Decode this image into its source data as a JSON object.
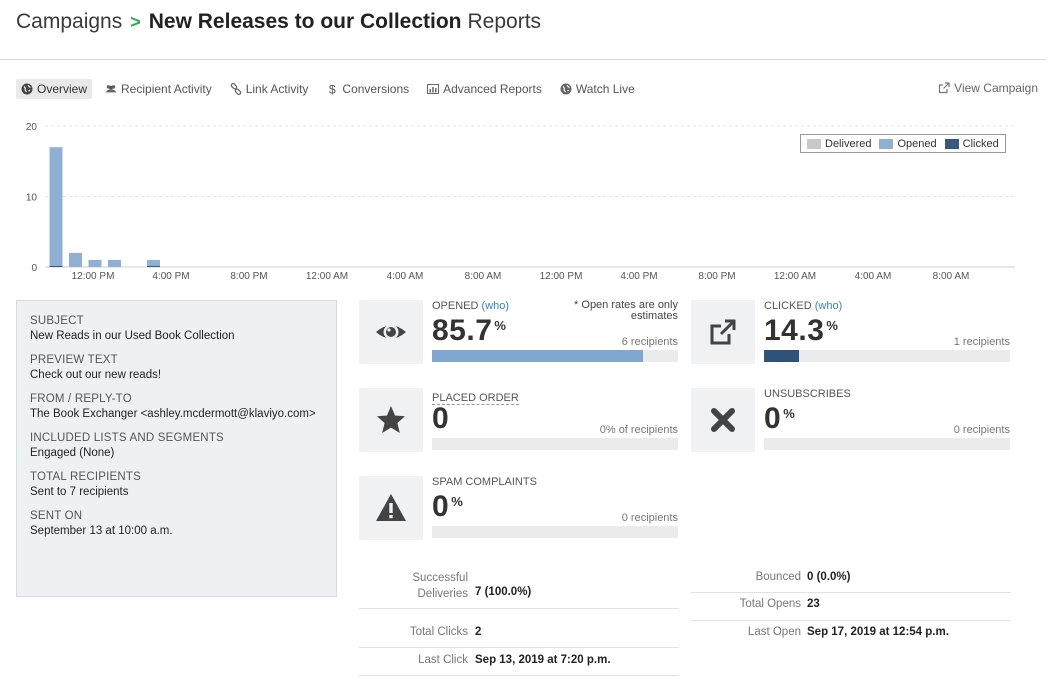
{
  "header": {
    "crumb": "Campaigns",
    "separator": ">",
    "title": "New Releases to our Collection",
    "suffix": "Reports"
  },
  "tabs": [
    {
      "label": "Overview",
      "icon": "globe-icon",
      "active": true
    },
    {
      "label": "Recipient Activity",
      "icon": "users-icon",
      "active": false
    },
    {
      "label": "Link Activity",
      "icon": "link-icon",
      "active": false
    },
    {
      "label": "Conversions",
      "icon": "dollar-icon",
      "active": false
    },
    {
      "label": "Advanced Reports",
      "icon": "bar-chart-icon",
      "active": false
    },
    {
      "label": "Watch Live",
      "icon": "globe-icon",
      "active": false
    }
  ],
  "view_campaign": {
    "label": "View Campaign",
    "icon": "external-link-icon"
  },
  "colors": {
    "delivered": "#c9c9c9",
    "opened": "#8fb0d3",
    "clicked": "#385a80",
    "opened_bar": "#7fa7cf",
    "clicked_bar": "#2e5377"
  },
  "chart_data": {
    "type": "bar",
    "ylim": [
      0,
      20
    ],
    "yticks": [
      0,
      10,
      20
    ],
    "xticks": [
      "12:00 PM",
      "4:00 PM",
      "8:00 PM",
      "12:00 AM",
      "4:00 AM",
      "8:00 AM",
      "12:00 PM",
      "4:00 PM",
      "8:00 PM",
      "12:00 AM",
      "4:00 AM",
      "8:00 AM"
    ],
    "legend": [
      "Delivered",
      "Opened",
      "Clicked"
    ],
    "legend_position": "top-right",
    "grid": true,
    "x_unit": "hours after 10:00 AM Sep 13",
    "series": [
      {
        "name": "Opened",
        "x": [
          0,
          1,
          2,
          3,
          5
        ],
        "values": [
          17,
          2,
          1,
          1,
          1
        ]
      },
      {
        "name": "Clicked",
        "x": [
          0,
          5
        ],
        "values": [
          1,
          1
        ]
      }
    ]
  },
  "details": [
    {
      "label": "SUBJECT",
      "value": "New Reads in our Used Book Collection"
    },
    {
      "label": "PREVIEW TEXT",
      "value": "Check out our new reads!"
    },
    {
      "label": "FROM / REPLY-TO",
      "value": "The Book Exchanger <ashley.mcdermott@klaviyo.com>"
    },
    {
      "label": "INCLUDED LISTS AND SEGMENTS",
      "value": "Engaged (None)"
    },
    {
      "label": "TOTAL RECIPIENTS",
      "value": "Sent to 7 recipients"
    },
    {
      "label": "SENT ON",
      "value": "September 13 at 10:00 a.m."
    }
  ],
  "metrics": {
    "opened": {
      "label": "OPENED",
      "who": "(who)",
      "value": "85.7",
      "pct": "%",
      "note": "* Open rates are only estimates",
      "recipients": "6 recipients",
      "fraction": 0.857,
      "icon": "eye-icon"
    },
    "clicked": {
      "label": "CLICKED",
      "who": "(who)",
      "value": "14.3",
      "pct": "%",
      "recipients": "1 recipients",
      "fraction": 0.143,
      "icon": "external-link-icon"
    },
    "placed_order": {
      "label": "PLACED ORDER",
      "value": "0",
      "recipients": "0% of recipients",
      "fraction": 0,
      "icon": "star-icon"
    },
    "unsubscribes": {
      "label": "UNSUBSCRIBES",
      "value": "0",
      "pct": "%",
      "recipients": "0 recipients",
      "fraction": 0,
      "icon": "x-icon"
    },
    "spam": {
      "label": "SPAM COMPLAINTS",
      "value": "0",
      "pct": "%",
      "recipients": "0 recipients",
      "fraction": 0,
      "icon": "warning-icon"
    }
  },
  "stats_left": [
    {
      "key": "Successful Deliveries",
      "value": "7 (100.0%)"
    },
    {
      "key": "Total Clicks",
      "value": "2"
    },
    {
      "key": "Last Click",
      "value": "Sep 13, 2019 at 7:20 p.m."
    }
  ],
  "stats_right": [
    {
      "key": "Bounced",
      "value": "0 (0.0%)"
    },
    {
      "key": "Total Opens",
      "value": "23"
    },
    {
      "key": "Last Open",
      "value": "Sep 17, 2019 at 12:54 p.m."
    }
  ]
}
